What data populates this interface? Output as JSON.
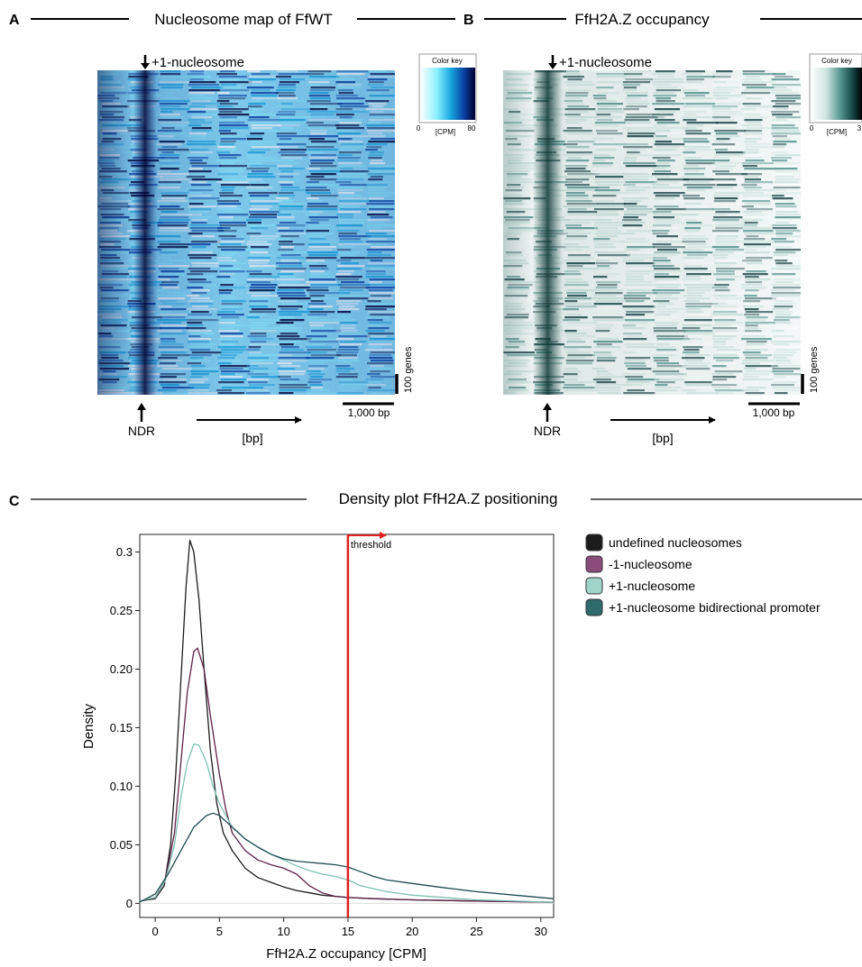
{
  "panel_a": {
    "letter": "A",
    "title": "Nucleosome map of FfWT",
    "top_annotation": "+1-nucleosome",
    "bottom_annotation": "NDR",
    "axis_label": "[bp]",
    "scalebar_label": "1,000 bp",
    "genes_label": "100 genes",
    "color_key": {
      "title": "Color key",
      "min": "0",
      "max": "80",
      "unit": "[CPM]"
    }
  },
  "panel_b": {
    "letter": "B",
    "title": "FfH2A.Z occupancy",
    "top_annotation": "+1-nucleosome",
    "bottom_annotation": "NDR",
    "axis_label": "[bp]",
    "scalebar_label": "1,000 bp",
    "genes_label": "100 genes",
    "color_key": {
      "title": "Color key",
      "min": "0",
      "max": "3",
      "unit": "[CPM]"
    }
  },
  "panel_c": {
    "letter": "C",
    "title": "Density plot FfH2A.Z positioning",
    "threshold_label": "threshold"
  },
  "colors": {
    "undefined": "#1c1c1c",
    "minus1": "#5e2145",
    "plus1": "#7fc0b2",
    "bidirectional": "#1f4a4d",
    "threshold": "#e02020",
    "heatmap_a": [
      "#ffffff",
      "#8ef0ff",
      "#19a8e0",
      "#0a3fa0",
      "#000030"
    ],
    "heatmap_b": [
      "#ffffff",
      "#cfe5e0",
      "#4e8f8a",
      "#0e3a3c",
      "#000000"
    ]
  },
  "chart_data": [
    {
      "type": "heatmap",
      "panel": "A",
      "title": "Nucleosome map of FfWT",
      "xlabel": "[bp]",
      "color_range": [
        0,
        80
      ],
      "color_unit": "[CPM]"
    },
    {
      "type": "heatmap",
      "panel": "B",
      "title": "FfH2A.Z occupancy",
      "xlabel": "[bp]",
      "color_range": [
        0,
        3
      ],
      "color_unit": "[CPM]"
    },
    {
      "type": "line",
      "panel": "C",
      "title": "Density plot FfH2A.Z positioning",
      "xlabel": "FfH2A.Z occupancy  [CPM]",
      "ylabel": "Density",
      "xlim": [
        -1.2,
        31
      ],
      "ylim": [
        -0.012,
        0.315
      ],
      "xticks": [
        0,
        5,
        10,
        15,
        20,
        25,
        30
      ],
      "xtick_labels": [
        "0",
        "5",
        "10",
        "15",
        "20",
        "25",
        "30"
      ],
      "yticks": [
        0,
        0.05,
        0.1,
        0.15,
        0.2,
        0.25,
        0.3
      ],
      "ytick_labels": [
        "0",
        "0.05",
        "0.10",
        "0.15",
        "0.20",
        "0.25",
        "0.3"
      ],
      "threshold_x": 15,
      "legend_position": "right",
      "series": [
        {
          "name": "undefined nucleosomes",
          "color": "#1c1c1c",
          "points": [
            [
              -1.2,
              0.002
            ],
            [
              0,
              0.004
            ],
            [
              0.7,
              0.015
            ],
            [
              1.2,
              0.05
            ],
            [
              1.6,
              0.11
            ],
            [
              2,
              0.19
            ],
            [
              2.4,
              0.27
            ],
            [
              2.7,
              0.31
            ],
            [
              3,
              0.3
            ],
            [
              3.4,
              0.26
            ],
            [
              3.8,
              0.2
            ],
            [
              4.3,
              0.13
            ],
            [
              4.8,
              0.085
            ],
            [
              5.3,
              0.06
            ],
            [
              6,
              0.045
            ],
            [
              7,
              0.03
            ],
            [
              8,
              0.022
            ],
            [
              9,
              0.018
            ],
            [
              10,
              0.014
            ],
            [
              11,
              0.011
            ],
            [
              12,
              0.009
            ],
            [
              13,
              0.007
            ],
            [
              14,
              0.006
            ],
            [
              15,
              0.005
            ],
            [
              17,
              0.004
            ],
            [
              20,
              0.003
            ],
            [
              25,
              0.002
            ],
            [
              31,
              0.001
            ]
          ]
        },
        {
          "name": "-1-nucleosome",
          "color": "#5e2145",
          "points": [
            [
              -1.2,
              0.002
            ],
            [
              0,
              0.005
            ],
            [
              0.8,
              0.02
            ],
            [
              1.5,
              0.06
            ],
            [
              2,
              0.12
            ],
            [
              2.5,
              0.18
            ],
            [
              3,
              0.215
            ],
            [
              3.3,
              0.218
            ],
            [
              3.8,
              0.2
            ],
            [
              4.3,
              0.16
            ],
            [
              5,
              0.11
            ],
            [
              5.5,
              0.08
            ],
            [
              6,
              0.06
            ],
            [
              7,
              0.045
            ],
            [
              8,
              0.037
            ],
            [
              9,
              0.033
            ],
            [
              10,
              0.03
            ],
            [
              11,
              0.025
            ],
            [
              12,
              0.015
            ],
            [
              13,
              0.009
            ],
            [
              14,
              0.006
            ],
            [
              15,
              0.005
            ],
            [
              17,
              0.004
            ],
            [
              20,
              0.003
            ],
            [
              25,
              0.002
            ],
            [
              31,
              0.001
            ]
          ]
        },
        {
          "name": "+1-nucleosome",
          "color": "#7fc0b2",
          "points": [
            [
              -1.2,
              0.002
            ],
            [
              0,
              0.005
            ],
            [
              0.8,
              0.02
            ],
            [
              1.5,
              0.05
            ],
            [
              2,
              0.09
            ],
            [
              2.5,
              0.12
            ],
            [
              3,
              0.136
            ],
            [
              3.4,
              0.135
            ],
            [
              4,
              0.12
            ],
            [
              4.5,
              0.1
            ],
            [
              5,
              0.085
            ],
            [
              6,
              0.065
            ],
            [
              7,
              0.055
            ],
            [
              8,
              0.048
            ],
            [
              9,
              0.042
            ],
            [
              10,
              0.037
            ],
            [
              11,
              0.032
            ],
            [
              12,
              0.028
            ],
            [
              13,
              0.025
            ],
            [
              14,
              0.023
            ],
            [
              15,
              0.02
            ],
            [
              16,
              0.015
            ],
            [
              18,
              0.01
            ],
            [
              20,
              0.007
            ],
            [
              25,
              0.003
            ],
            [
              31,
              0.001
            ]
          ]
        },
        {
          "name": "+1-nucleosome bidirectional promoter",
          "color": "#1f4a4d",
          "points": [
            [
              -1.2,
              0.001
            ],
            [
              0,
              0.008
            ],
            [
              1,
              0.025
            ],
            [
              2,
              0.045
            ],
            [
              3,
              0.065
            ],
            [
              4,
              0.075
            ],
            [
              4.5,
              0.077
            ],
            [
              5,
              0.075
            ],
            [
              6,
              0.065
            ],
            [
              7,
              0.055
            ],
            [
              8,
              0.048
            ],
            [
              9,
              0.042
            ],
            [
              10,
              0.038
            ],
            [
              11,
              0.036
            ],
            [
              12,
              0.035
            ],
            [
              13,
              0.034
            ],
            [
              14,
              0.033
            ],
            [
              15,
              0.031
            ],
            [
              16,
              0.027
            ],
            [
              17,
              0.023
            ],
            [
              18,
              0.02
            ],
            [
              20,
              0.017
            ],
            [
              22,
              0.014
            ],
            [
              25,
              0.01
            ],
            [
              28,
              0.007
            ],
            [
              31,
              0.004
            ]
          ]
        }
      ]
    }
  ]
}
